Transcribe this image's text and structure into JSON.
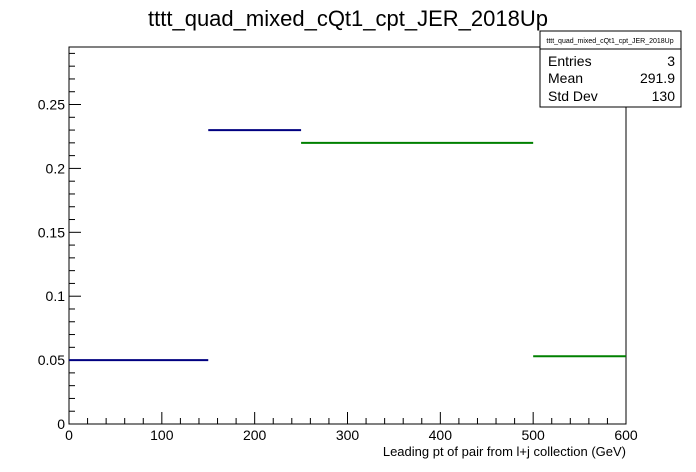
{
  "chart_data": {
    "type": "histogram",
    "title": "tttt_quad_mixed_cQt1_cpt_JER_2018Up",
    "xlabel": "Leading pt of pair from l+j collection (GeV)",
    "ylabel": "",
    "xlim": [
      0,
      600
    ],
    "ylim": [
      0,
      0.295
    ],
    "x_ticks": [
      0,
      100,
      200,
      300,
      400,
      500,
      600
    ],
    "y_ticks": [
      0,
      0.05,
      0.1,
      0.15,
      0.2,
      0.25
    ],
    "y_tick_labels": [
      "0",
      "0.05",
      "0.1",
      "0.15",
      "0.2",
      "0.25"
    ],
    "x_tick_labels": [
      "0",
      "100",
      "200",
      "300",
      "400",
      "500",
      "600"
    ],
    "bins": [
      {
        "x0": 0,
        "x1": 150,
        "value": 0.05,
        "color": "#000080"
      },
      {
        "x0": 150,
        "x1": 250,
        "value": 0.23,
        "color": "#000080"
      },
      {
        "x0": 250,
        "x1": 500,
        "value": 0.22,
        "color": "#008000"
      },
      {
        "x0": 500,
        "x1": 600,
        "value": 0.053,
        "color": "#008000"
      }
    ],
    "grid": false,
    "legend": "none",
    "stats": {
      "title": "tttt_quad_mixed_cQt1_cpt_JER_2018Up",
      "rows": [
        {
          "label": "Entries",
          "value": "3"
        },
        {
          "label": "Mean",
          "value": "291.9"
        },
        {
          "label": "Std Dev",
          "value": "130"
        }
      ]
    }
  }
}
